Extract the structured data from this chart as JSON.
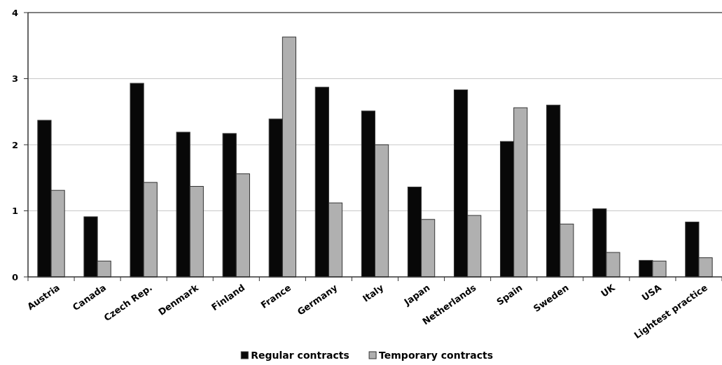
{
  "chart_data": {
    "type": "bar",
    "categories": [
      "Austria",
      "Canada",
      "Czech Rep.",
      "Denmark",
      "Finland",
      "France",
      "Germany",
      "Italy",
      "Japan",
      "Netherlands",
      "Spain",
      "Sweden",
      "UK",
      "USA",
      "Lightest practice"
    ],
    "series": [
      {
        "name": "Regular contracts",
        "color": "#080808",
        "values": [
          2.37,
          0.91,
          2.93,
          2.19,
          2.17,
          2.39,
          2.87,
          2.51,
          1.36,
          2.83,
          2.05,
          2.6,
          1.03,
          0.25,
          0.83
        ]
      },
      {
        "name": "Temporary contracts",
        "color": "#b0b0b0",
        "values": [
          1.31,
          0.24,
          1.43,
          1.37,
          1.56,
          3.63,
          1.12,
          2.0,
          0.87,
          0.93,
          2.56,
          0.8,
          0.37,
          0.24,
          0.29
        ]
      }
    ],
    "ylim": [
      0,
      4
    ],
    "yticks": [
      0,
      1,
      2,
      3,
      4
    ],
    "grid": "y",
    "legend": "bottom"
  }
}
